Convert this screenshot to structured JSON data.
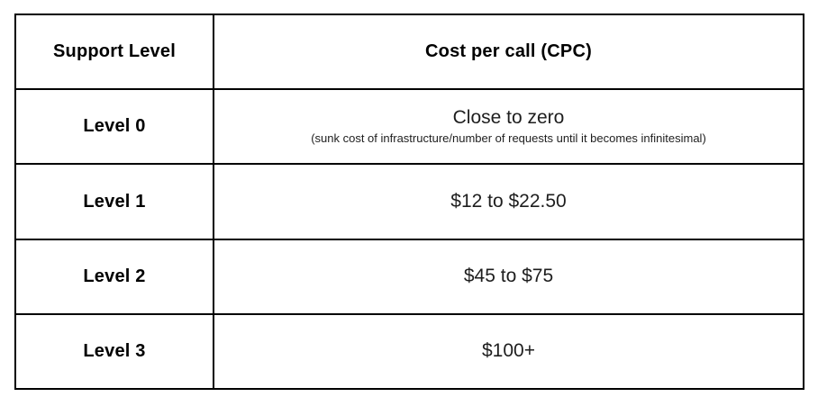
{
  "figure": {
    "background": "#ffffff",
    "border_color": "#000000",
    "text_color": "#000000"
  },
  "chart_data": {
    "type": "table",
    "columns": [
      "Support Level",
      "Cost per call (CPC)"
    ],
    "rows": [
      {
        "level": "Level 0",
        "cost": "Close to zero",
        "note": "(sunk cost of infrastructure/number of requests until it becomes infinitesimal)"
      },
      {
        "level": "Level 1",
        "cost": "$12 to $22.50"
      },
      {
        "level": "Level 2",
        "cost": "$45 to $75"
      },
      {
        "level": "Level 3",
        "cost": "$100+"
      }
    ]
  }
}
